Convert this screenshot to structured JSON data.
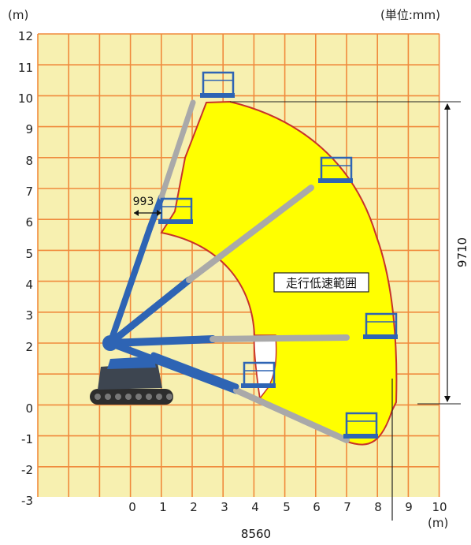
{
  "units": {
    "y_axis_unit": "(m)",
    "x_axis_unit": "(m)",
    "dimension_unit": "(単位:mm)"
  },
  "y_ticks": [
    "12",
    "11",
    "10",
    "9",
    "8",
    "7",
    "6",
    "5",
    "4",
    "3",
    "2",
    "0",
    "-1",
    "-2",
    "-3"
  ],
  "x_ticks": [
    "0",
    "1",
    "2",
    "3",
    "4",
    "5",
    "6",
    "7",
    "8",
    "9",
    "10"
  ],
  "dimensions": {
    "outreach_offset": "993",
    "max_height": "9710",
    "max_reach": "8560"
  },
  "zone_label": "走行低速範囲",
  "colors": {
    "grid_background": "#f7f0b0",
    "grid_lines": "#f08a3c",
    "zone_fill": "#ffff00",
    "zone_outline": "#c8322a",
    "boom_blue": "#2e64b4",
    "boom_gray": "#a9a9a9",
    "machine_dark": "#3d4550",
    "track_dark": "#2d2d2d"
  }
}
